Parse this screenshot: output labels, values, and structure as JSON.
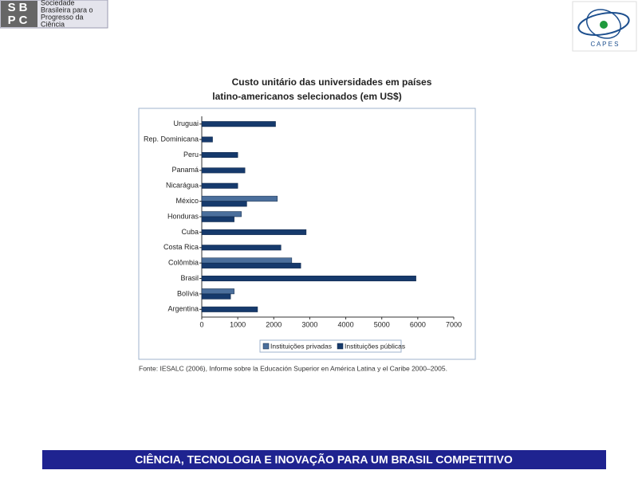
{
  "header": {
    "logo_left": {
      "abbr": [
        "SB",
        "PC"
      ],
      "text": [
        "Sociedade",
        "Brasileira para o",
        "Progresso da",
        "Ciência"
      ]
    },
    "logo_right": "C A P E S"
  },
  "chart_data": {
    "type": "bar",
    "orientation": "horizontal",
    "title": [
      "Custo unitário das universidades em países",
      "latino-americanos selecionados (em US$)"
    ],
    "categories": [
      "Uruguai",
      "Rep. Dominicana",
      "Peru",
      "Panamá",
      "Nicarágua",
      "México",
      "Honduras",
      "Cuba",
      "Costa Rica",
      "Colômbia",
      "Brasil",
      "Bolívia",
      "Argentina"
    ],
    "series": [
      {
        "name": "Instituições privadas",
        "color": "#4b6f9c",
        "values": [
          null,
          null,
          null,
          null,
          null,
          2100,
          1100,
          null,
          null,
          2500,
          null,
          900,
          null
        ]
      },
      {
        "name": "Instituições públicas",
        "color": "#163a6c",
        "values": [
          2050,
          300,
          1000,
          1200,
          1000,
          1250,
          900,
          2900,
          2200,
          2750,
          5950,
          800,
          1550
        ]
      }
    ],
    "xlim": [
      0,
      7000
    ],
    "xticks": [
      0,
      1000,
      2000,
      3000,
      4000,
      5000,
      6000,
      7000
    ],
    "grid": false,
    "legend": "bottom"
  },
  "source": "Fonte: IESALC (2006), Informe sobre la Educación Superior en América Latina y el Caribe 2000–2005.",
  "footer": "CIÊNCIA, TECNOLOGIA E INOVAÇÃO PARA UM BRASIL COMPETITIVO"
}
